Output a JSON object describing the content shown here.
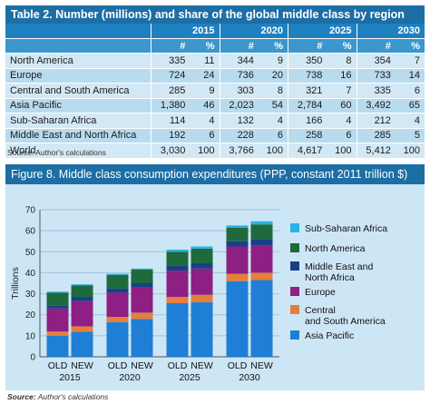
{
  "table": {
    "title": "Table 2. Number (millions) and share of the global middle class by region",
    "years": [
      "2015",
      "2020",
      "2025",
      "2030"
    ],
    "unit_headers": [
      "#",
      "%"
    ],
    "rows": [
      {
        "region": "North America",
        "values": [
          "335",
          "11",
          "344",
          "9",
          "350",
          "8",
          "354",
          "7"
        ]
      },
      {
        "region": "Europe",
        "values": [
          "724",
          "24",
          "736",
          "20",
          "738",
          "16",
          "733",
          "14"
        ]
      },
      {
        "region": "Central and South America",
        "values": [
          "285",
          "9",
          "303",
          "8",
          "321",
          "7",
          "335",
          "6"
        ]
      },
      {
        "region": "Asia Pacific",
        "values": [
          "1,380",
          "46",
          "2,023",
          "54",
          "2,784",
          "60",
          "3,492",
          "65"
        ]
      },
      {
        "region": "Sub-Saharan Africa",
        "values": [
          "114",
          "4",
          "132",
          "4",
          "166",
          "4",
          "212",
          "4"
        ]
      },
      {
        "region": "Middle East and North Africa",
        "values": [
          "192",
          "6",
          "228",
          "6",
          "258",
          "6",
          "285",
          "5"
        ]
      },
      {
        "region": "World",
        "values": [
          "3,030",
          "100",
          "3,766",
          "100",
          "4,617",
          "100",
          "5,412",
          "100"
        ]
      }
    ],
    "source": "Source: Author's calculations"
  },
  "figure": {
    "title": "Figure 8.  Middle class consumption expenditures (PPP, constant 2011 trillion $)",
    "source_label": "Source:",
    "source_text": " Author's calculations"
  },
  "chart_data": {
    "type": "bar",
    "stacked": true,
    "ylabel": "Trillions",
    "ylim": [
      0,
      70
    ],
    "yticks": [
      0,
      10,
      20,
      30,
      40,
      50,
      60,
      70
    ],
    "grid": true,
    "legend_position": "right",
    "groups": [
      "2015",
      "2020",
      "2025",
      "2030"
    ],
    "categories": [
      "OLD",
      "NEW",
      "OLD",
      "NEW",
      "OLD",
      "NEW",
      "OLD",
      "NEW"
    ],
    "series": [
      {
        "name": "Asia Pacific",
        "color": "#1f7fd4",
        "values": [
          10,
          12,
          16.5,
          18,
          25.5,
          26,
          36,
          36.5
        ]
      },
      {
        "name": "Central and South America",
        "color": "#e67e3c",
        "values": [
          2,
          2.5,
          2.5,
          3,
          3,
          3.5,
          3.5,
          3.5
        ]
      },
      {
        "name": "Europe",
        "color": "#8e1f83",
        "values": [
          11,
          12,
          11.5,
          12,
          12.5,
          12.5,
          13,
          13
        ]
      },
      {
        "name": "Middle East and North Africa",
        "color": "#1a3f85",
        "values": [
          1.5,
          2,
          2,
          2,
          2.5,
          2.5,
          2.5,
          3
        ]
      },
      {
        "name": "North America",
        "color": "#1e6a3c",
        "values": [
          6,
          5.5,
          6.5,
          6.5,
          6.5,
          7,
          6.5,
          7
        ]
      },
      {
        "name": "Sub-Saharan Africa",
        "color": "#2ab2e5",
        "values": [
          0.5,
          0.5,
          0.5,
          0.5,
          1,
          1,
          1,
          1.5
        ]
      }
    ],
    "legend_order": [
      "Sub-Saharan Africa",
      "North America",
      "Middle East and North Africa",
      "Europe",
      "Central and South America",
      "Asia Pacific"
    ]
  }
}
